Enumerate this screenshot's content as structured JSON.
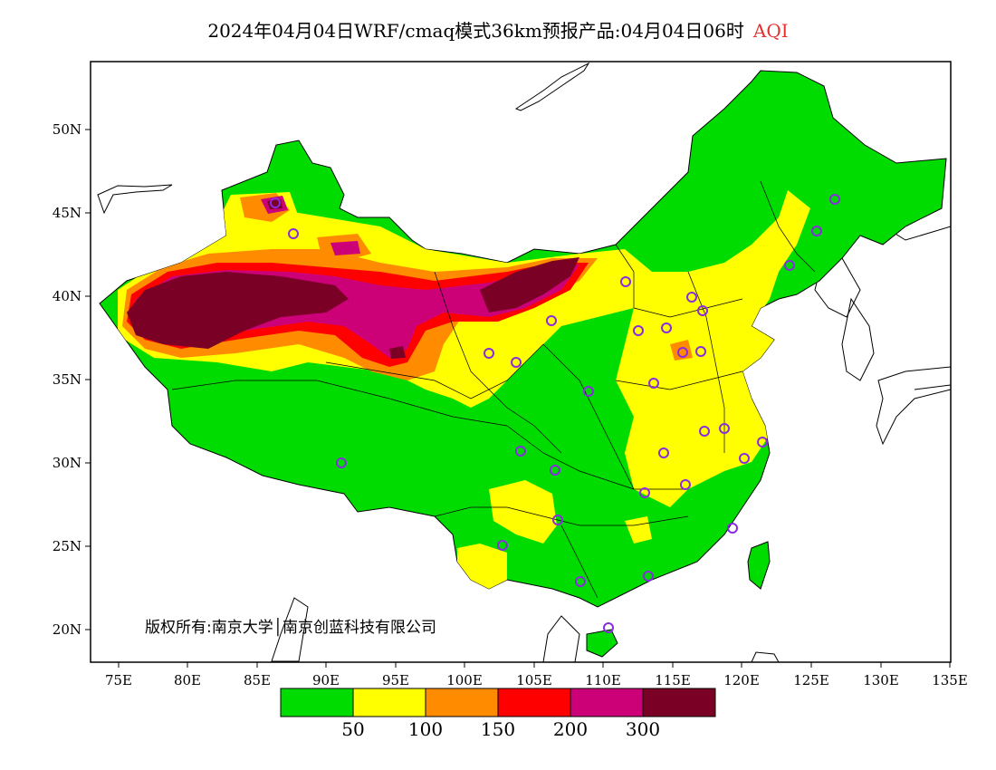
{
  "title": {
    "text": "2024年04月04日WRF/cmaq模式36km预报产品:04月04日06时",
    "variable": "AQI",
    "variable_color": "#e53030"
  },
  "map": {
    "lon_range": [
      73,
      135
    ],
    "lat_range": [
      18,
      54
    ],
    "x_ticks": [
      "75E",
      "80E",
      "85E",
      "90E",
      "95E",
      "100E",
      "105E",
      "110E",
      "115E",
      "120E",
      "125E",
      "130E",
      "135E"
    ],
    "y_ticks": [
      "20N",
      "25N",
      "30N",
      "35N",
      "40N",
      "45N",
      "50N"
    ],
    "copyright": "版权所有:南京大学│南京创蓝科技有限公司"
  },
  "legend": {
    "colors": [
      "#00dc00",
      "#ffff00",
      "#ff8c00",
      "#ff0000",
      "#cc0077",
      "#7a0026"
    ],
    "labels": [
      "50",
      "100",
      "150",
      "200",
      "300"
    ]
  }
}
